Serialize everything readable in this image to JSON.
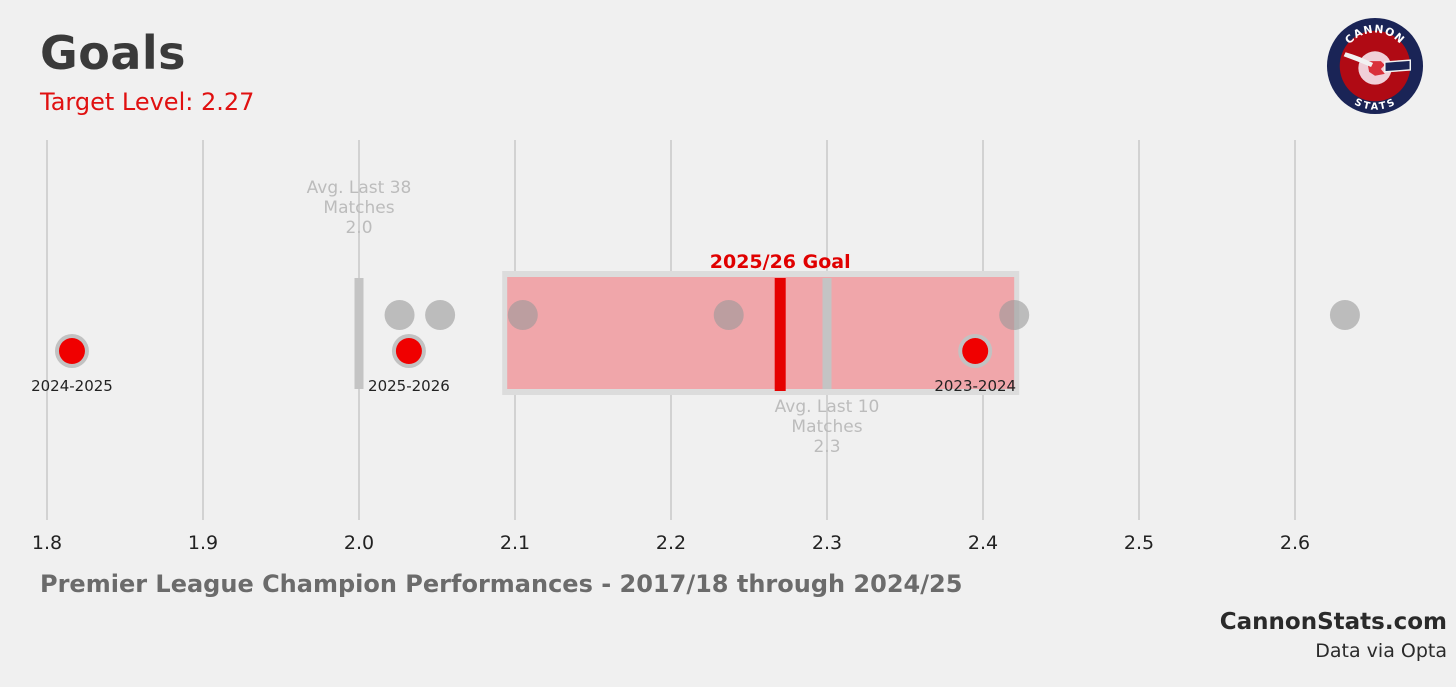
{
  "header": {
    "title": "Goals",
    "subtitle": "Target Level: 2.27"
  },
  "logo": {
    "text_top": "CANNON",
    "text_bottom": "STATS",
    "colors": {
      "ring": "#1a2456",
      "inner": "#b00a14",
      "disc": "#f0d0d8"
    }
  },
  "footer": {
    "note": "Premier League Champion Performances - 2017/18 through 2024/25",
    "site": "CannonStats.com",
    "credit": "Data via Opta"
  },
  "chart_data": {
    "type": "scatter",
    "xlim": [
      1.8,
      2.6
    ],
    "ticks": [
      1.8,
      1.9,
      2.0,
      2.1,
      2.2,
      2.3,
      2.4,
      2.5,
      2.6
    ],
    "tick_labels": [
      "1.8",
      "1.9",
      "2.0",
      "2.1",
      "2.2",
      "2.3",
      "2.4",
      "2.5",
      "2.6"
    ],
    "grid": true,
    "champion_points": [
      2.026,
      2.052,
      2.105,
      2.237,
      2.42,
      2.632
    ],
    "season_points": [
      {
        "season": "2024-2025",
        "value": 1.816
      },
      {
        "season": "2025-2026",
        "value": 2.032
      },
      {
        "season": "2023-2024",
        "value": 2.395
      }
    ],
    "goal_band": {
      "label": "2025/26 Goal",
      "min": 2.095,
      "max": 2.42,
      "target": 2.27
    },
    "averages": [
      {
        "label_lines": [
          "Avg. Last 38",
          "Matches"
        ],
        "value_label": "2.0",
        "value": 2.0
      },
      {
        "label_lines": [
          "Avg. Last 10",
          "Matches"
        ],
        "value_label": "2.3",
        "value": 2.3
      }
    ],
    "colors": {
      "band": "#f0a6aa",
      "band_border": "#dcdcdc",
      "target_line": "#e60000",
      "season_point": "#f00000",
      "champion_point": "#9a9a9a",
      "avg_marker": "#c4c4c4",
      "grid": "#c8c8c8"
    }
  }
}
